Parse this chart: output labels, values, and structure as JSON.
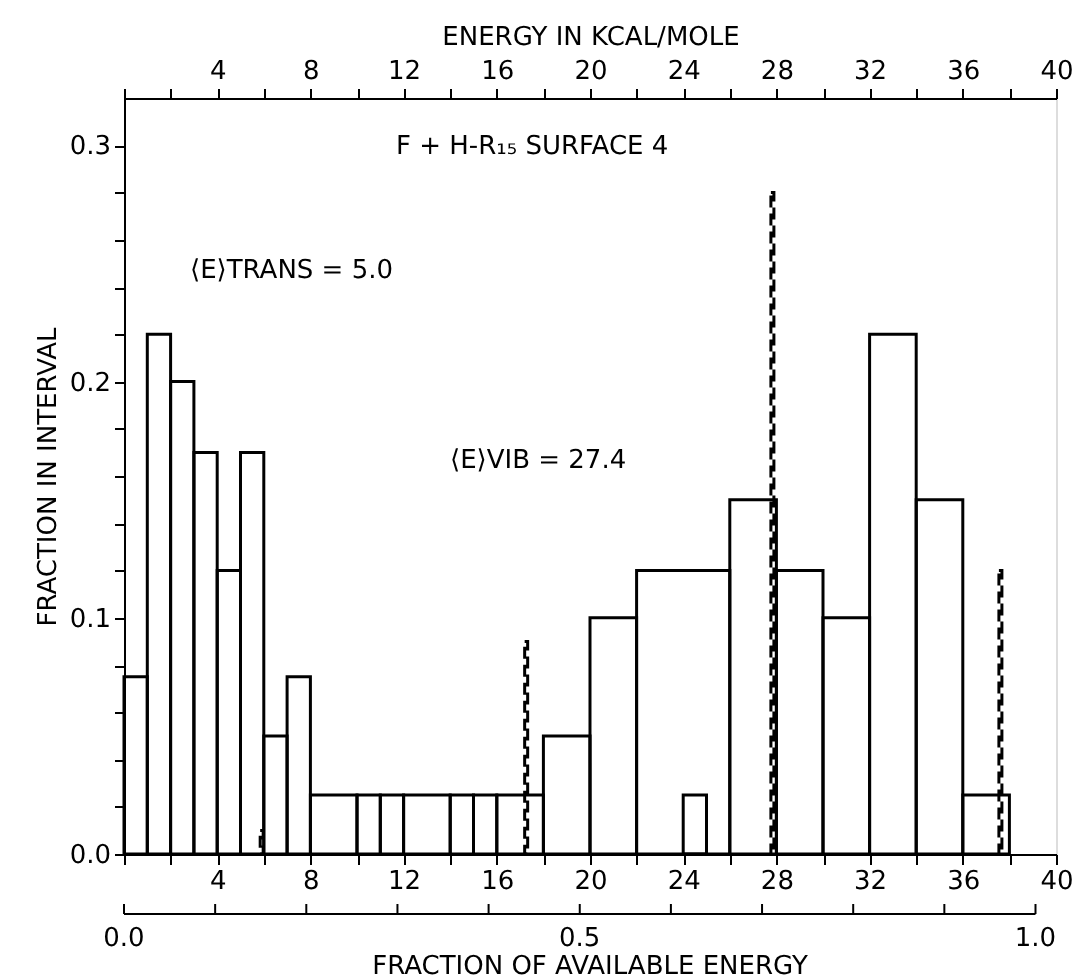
{
  "chart_data": {
    "type": "histogram",
    "title": "F + H-R₁₅   SURFACE 4",
    "x2label": "ENERGY IN KCAL/MOLE",
    "xlabel": "FRACTION OF AVAILABLE ENERGY",
    "ylabel": "FRACTION IN INTERVAL",
    "annotations": [
      "⟨E⟩TRANS = 5.0",
      "⟨E⟩VIB = 27.4",
      "0.0",
      "0.5",
      "1.0"
    ],
    "series": [
      {
        "color": "#000000",
        "bins": [
          0,
          1,
          2,
          3,
          4,
          5,
          6,
          7,
          8,
          10,
          11,
          12,
          14,
          15,
          16,
          18,
          20,
          22,
          26,
          28,
          30,
          32,
          34,
          36,
          38
        ],
        "values": [
          0.075,
          0.22,
          0.2,
          0.17,
          0.12,
          0.17,
          0.05,
          0.075,
          0.025,
          0.025,
          0.025,
          0.025,
          0.025,
          0.025,
          0.025,
          0.05,
          0.1,
          0.12,
          0.15,
          0.12,
          0.1,
          0.22,
          0.15,
          0.025
        ]
      },
      {
        "type": "bar",
        "color": "#000000",
        "line_style": "dashed",
        "x": [
          5.6,
          17.2,
          28,
          38
        ],
        "values": [
          0.01,
          0.09,
          0.28,
          0.12
        ]
      },
      {
        "color": "#000000",
        "bins": [
          24,
          25
        ],
        "values": [
          0.025
        ]
      }
    ],
    "xlim": [
      0,
      40
    ],
    "x2lim": [
      0,
      40
    ],
    "ylim": [
      0,
      0.32
    ],
    "xticks": [
      {
        "value": 0,
        "label": null
      },
      {
        "value": 2,
        "label": null
      },
      4,
      {
        "value": 6,
        "label": null
      },
      8,
      {
        "value": 10,
        "label": null
      },
      12,
      {
        "value": 14,
        "label": null
      },
      16,
      {
        "value": 18,
        "label": null
      },
      20,
      {
        "value": 22,
        "label": null
      },
      24,
      {
        "value": 26,
        "label": null
      },
      28,
      {
        "value": 30,
        "label": null
      },
      32,
      {
        "value": 34,
        "label": null
      },
      36,
      {
        "value": 38,
        "label": null
      },
      40
    ],
    "x2ticks": [
      {
        "value": 0,
        "label": null
      },
      {
        "value": 2,
        "label": null
      },
      4,
      {
        "value": 6,
        "label": null
      },
      8,
      {
        "value": 10,
        "label": null
      },
      12,
      {
        "value": 14,
        "label": null
      },
      16,
      {
        "value": 18,
        "label": null
      },
      20,
      {
        "value": 22,
        "label": null
      },
      24,
      {
        "value": 26,
        "label": null
      },
      28,
      {
        "value": 30,
        "label": null
      },
      32,
      {
        "value": 34,
        "label": null
      },
      36,
      {
        "value": 38,
        "label": null
      },
      40
    ],
    "yticks": [
      {
        "value": 0,
        "label": "0.0"
      },
      {
        "value": 0.02,
        "label": null
      },
      {
        "value": 0.04,
        "label": null
      },
      {
        "value": 0.06,
        "label": null
      },
      {
        "value": 0.08,
        "label": null
      },
      {
        "value": 0.1,
        "label": "0.1"
      },
      {
        "value": 0.12,
        "label": null
      },
      {
        "value": 0.14,
        "label": null
      },
      {
        "value": 0.16,
        "label": null
      },
      {
        "value": 0.18,
        "label": null
      },
      {
        "value": 0.2,
        "label": "0.2"
      },
      {
        "value": 0.22,
        "label": null
      },
      {
        "value": 0.24,
        "label": null
      },
      {
        "value": 0.26,
        "label": null
      },
      {
        "value": 0.28,
        "label": null
      },
      {
        "value": 0.3,
        "label": "0.3"
      }
    ],
    "grid": false
  }
}
